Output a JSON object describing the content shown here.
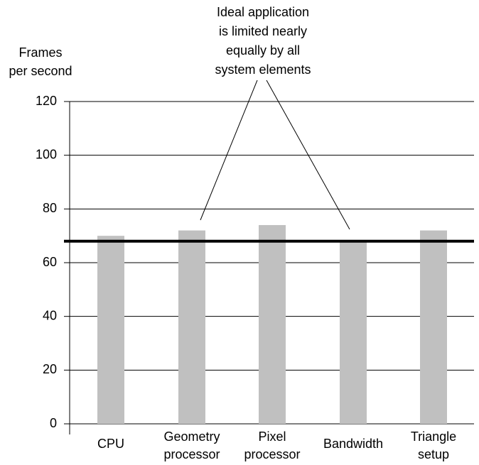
{
  "chart_data": {
    "type": "bar",
    "y_label": [
      "Frames",
      "per second"
    ],
    "annotation": [
      "Ideal application",
      "is limited nearly",
      "equally by all",
      "system elements"
    ],
    "categories": [
      [
        "CPU"
      ],
      [
        "Geometry",
        "processor"
      ],
      [
        "Pixel",
        "processor"
      ],
      [
        "Bandwidth"
      ],
      [
        "Triangle",
        "setup"
      ]
    ],
    "values": [
      70,
      72,
      74,
      68,
      72
    ],
    "color": "#c0c0c0",
    "reference_line": 68,
    "ylim": [
      0,
      120
    ],
    "yticks": [
      0,
      20,
      40,
      60,
      80,
      100,
      120
    ],
    "grid": true
  }
}
